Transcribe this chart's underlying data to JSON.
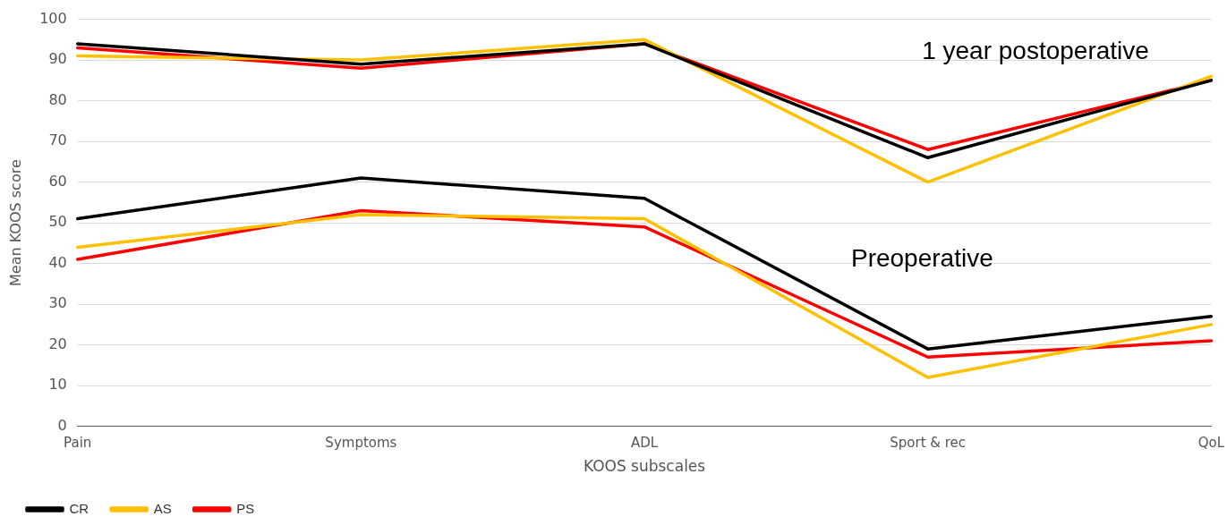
{
  "chart_data": {
    "type": "line",
    "xlabel": "KOOS subscales",
    "ylabel": "Mean KOOS score",
    "categories": [
      "Pain",
      "Symptoms",
      "ADL",
      "Sport & rec",
      "QoL"
    ],
    "series": [
      {
        "name": "CR",
        "color": "#000000",
        "values": [
          51,
          61,
          56,
          19,
          27
        ]
      },
      {
        "name": "AS",
        "color": "#ffc000",
        "values": [
          44,
          52,
          51,
          12,
          25
        ]
      },
      {
        "name": "PS",
        "color": "#ff0000",
        "values": [
          41,
          53,
          49,
          17,
          21
        ]
      },
      {
        "color": "#000000",
        "values": [
          94,
          89,
          94,
          66,
          85
        ]
      },
      {
        "color": "#ffc000",
        "values": [
          91,
          90,
          95,
          60,
          86
        ]
      },
      {
        "color": "#ff0000",
        "values": [
          93,
          88,
          94,
          68,
          85
        ]
      }
    ],
    "ylim": [
      0,
      100
    ],
    "yticks": [
      0,
      10,
      20,
      30,
      40,
      50,
      60,
      70,
      80,
      90,
      100
    ],
    "grid": "y",
    "legend": "bottom",
    "marker": "none",
    "line_style": "solid",
    "annotations": [
      "1 year postoperative",
      "Preoperative"
    ]
  }
}
